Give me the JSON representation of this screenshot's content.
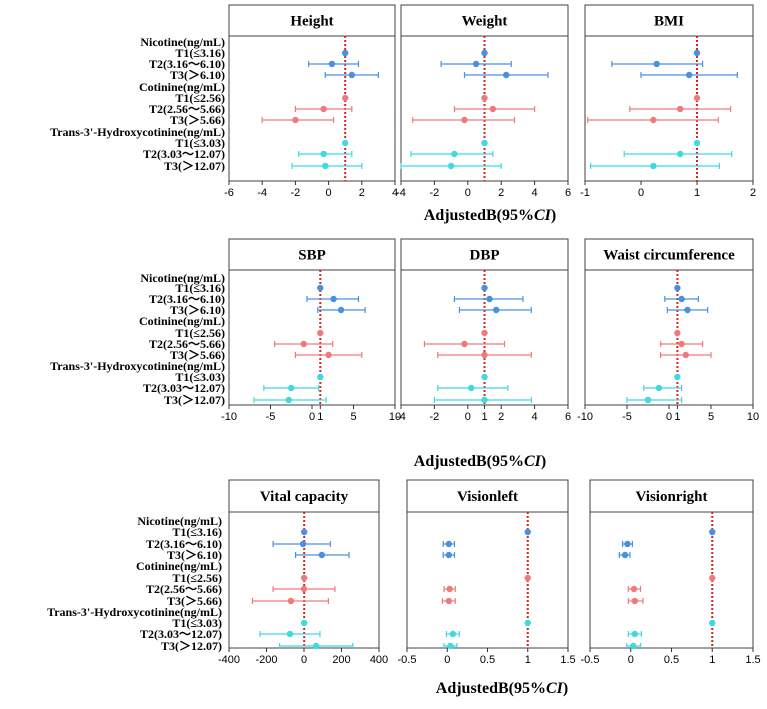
{
  "colors": {
    "nicotine": "#4a90e2",
    "cotinine": "#ee7b7b",
    "hydroxy": "#3fd9df",
    "refline": "#e0201a",
    "panel_border": "#404040"
  },
  "categories": [
    "Nicotine(ng/mL)",
    "T1(≤3.16)",
    "T2(3.16～6.10)",
    "T3(＞6.10)",
    "Cotinine(ng/mL)",
    "T1(≤2.56)",
    "T2(2.56～5.66)",
    "T3(＞5.66)",
    "Trans-3'-Hydroxycotinine(ng/mL)",
    "T1(≤3.03)",
    "T2(3.03～12.07)",
    "T3(＞12.07)"
  ],
  "xlabels": {
    "row1_prefix": "AdjustedB(95%",
    "row1_ci": "CI",
    "row1_suffix": ")",
    "row2_prefix": "AdjustedB(95%",
    "row2_ci": "CI",
    "row2_suffix": ")",
    "row3_prefix": "AdjustedB(95%",
    "row3_ci": "CI",
    "row3_suffix": ")"
  },
  "chart_data": [
    {
      "type": "forest",
      "title": "Height",
      "xlim": [
        -6,
        4
      ],
      "ticks": [
        "-6",
        "-4",
        "-2",
        "0",
        "2",
        "4"
      ],
      "tick_values": [
        -6,
        -4,
        -2,
        0,
        2,
        4
      ],
      "refline": 1,
      "points": [
        {
          "row": 1,
          "est": 1,
          "lo": 1,
          "hi": 1
        },
        {
          "row": 2,
          "est": 0.2,
          "lo": -1.2,
          "hi": 1.8
        },
        {
          "row": 3,
          "est": 1.4,
          "lo": -0.2,
          "hi": 3.0
        },
        {
          "row": 5,
          "est": 1,
          "lo": 1,
          "hi": 1
        },
        {
          "row": 6,
          "est": -0.3,
          "lo": -2.0,
          "hi": 1.4
        },
        {
          "row": 7,
          "est": -2.0,
          "lo": -4.0,
          "hi": 0.3
        },
        {
          "row": 9,
          "est": 1,
          "lo": 1,
          "hi": 1
        },
        {
          "row": 10,
          "est": -0.3,
          "lo": -1.8,
          "hi": 1.4
        },
        {
          "row": 11,
          "est": -0.2,
          "lo": -2.2,
          "hi": 2.0
        }
      ]
    },
    {
      "type": "forest",
      "title": "Weight",
      "xlim": [
        -4,
        6
      ],
      "ticks": [
        "-4",
        "-2",
        "0",
        "2",
        "4",
        "6"
      ],
      "tick_values": [
        -4,
        -2,
        0,
        2,
        4,
        6
      ],
      "refline": 1,
      "points": [
        {
          "row": 1,
          "est": 1,
          "lo": 1,
          "hi": 1
        },
        {
          "row": 2,
          "est": 0.5,
          "lo": -1.6,
          "hi": 2.6
        },
        {
          "row": 3,
          "est": 2.3,
          "lo": -0.2,
          "hi": 4.8
        },
        {
          "row": 5,
          "est": 1,
          "lo": 1,
          "hi": 1
        },
        {
          "row": 6,
          "est": 1.5,
          "lo": -0.8,
          "hi": 4.0
        },
        {
          "row": 7,
          "est": -0.2,
          "lo": -3.3,
          "hi": 2.8
        },
        {
          "row": 9,
          "est": 1,
          "lo": 1,
          "hi": 1
        },
        {
          "row": 10,
          "est": -0.8,
          "lo": -3.4,
          "hi": 1.5
        },
        {
          "row": 11,
          "est": -1.0,
          "lo": -4.0,
          "hi": 2.0
        }
      ]
    },
    {
      "type": "forest",
      "title": "BMI",
      "xlim": [
        -1,
        2
      ],
      "ticks": [
        "-1",
        "0",
        "1",
        "2"
      ],
      "tick_values": [
        -1,
        0,
        1,
        2
      ],
      "refline": 1,
      "points": [
        {
          "row": 1,
          "est": 1,
          "lo": 1,
          "hi": 1
        },
        {
          "row": 2,
          "est": 0.28,
          "lo": -0.52,
          "hi": 1.1
        },
        {
          "row": 3,
          "est": 0.86,
          "lo": 0.0,
          "hi": 1.72
        },
        {
          "row": 5,
          "est": 1,
          "lo": 1,
          "hi": 1
        },
        {
          "row": 6,
          "est": 0.7,
          "lo": -0.2,
          "hi": 1.6
        },
        {
          "row": 7,
          "est": 0.22,
          "lo": -0.95,
          "hi": 1.38
        },
        {
          "row": 9,
          "est": 1,
          "lo": 1,
          "hi": 1
        },
        {
          "row": 10,
          "est": 0.7,
          "lo": -0.3,
          "hi": 1.62
        },
        {
          "row": 11,
          "est": 0.22,
          "lo": -0.9,
          "hi": 1.4
        }
      ]
    },
    {
      "type": "forest",
      "title": "SBP",
      "xlim": [
        -10,
        10
      ],
      "ticks": [
        "-10",
        "-5",
        "0",
        "1",
        "5",
        "10"
      ],
      "tick_values": [
        -10,
        -5,
        0,
        1,
        5,
        10
      ],
      "refline": 1,
      "points": [
        {
          "row": 1,
          "est": 1,
          "lo": 1,
          "hi": 1
        },
        {
          "row": 2,
          "est": 2.6,
          "lo": -0.6,
          "hi": 5.6
        },
        {
          "row": 3,
          "est": 3.5,
          "lo": 0.7,
          "hi": 6.4
        },
        {
          "row": 5,
          "est": 1,
          "lo": 1,
          "hi": 1
        },
        {
          "row": 6,
          "est": -1.0,
          "lo": -4.5,
          "hi": 2.5
        },
        {
          "row": 7,
          "est": 2.0,
          "lo": -2.0,
          "hi": 6.0
        },
        {
          "row": 9,
          "est": 1,
          "lo": 1,
          "hi": 1
        },
        {
          "row": 10,
          "est": -2.5,
          "lo": -5.8,
          "hi": 0.8
        },
        {
          "row": 11,
          "est": -2.8,
          "lo": -7.0,
          "hi": 1.7
        }
      ]
    },
    {
      "type": "forest",
      "title": "DBP",
      "xlim": [
        -4,
        6
      ],
      "ticks": [
        "-4",
        "-2",
        "0",
        "1",
        "2",
        "4",
        "6"
      ],
      "tick_values": [
        -4,
        -2,
        0,
        1,
        2,
        4,
        6
      ],
      "refline": 1,
      "points": [
        {
          "row": 1,
          "est": 1,
          "lo": 1,
          "hi": 1
        },
        {
          "row": 2,
          "est": 1.3,
          "lo": -0.8,
          "hi": 3.3
        },
        {
          "row": 3,
          "est": 1.7,
          "lo": -0.5,
          "hi": 3.8
        },
        {
          "row": 5,
          "est": 1,
          "lo": 1,
          "hi": 1
        },
        {
          "row": 6,
          "est": -0.2,
          "lo": -2.6,
          "hi": 2.2
        },
        {
          "row": 7,
          "est": 1.0,
          "lo": -1.8,
          "hi": 3.8
        },
        {
          "row": 9,
          "est": 1,
          "lo": 1,
          "hi": 1
        },
        {
          "row": 10,
          "est": 0.2,
          "lo": -1.8,
          "hi": 2.4
        },
        {
          "row": 11,
          "est": 1.0,
          "lo": -2.0,
          "hi": 3.8
        }
      ]
    },
    {
      "type": "forest",
      "title": "Waist circumference",
      "xlim": [
        -10,
        10
      ],
      "ticks": [
        "-10",
        "-5",
        "0",
        "1",
        "5",
        "10"
      ],
      "tick_values": [
        -10,
        -5,
        0,
        1,
        5,
        10
      ],
      "refline": 1,
      "points": [
        {
          "row": 1,
          "est": 1,
          "lo": 1,
          "hi": 1
        },
        {
          "row": 2,
          "est": 1.5,
          "lo": -0.5,
          "hi": 3.5
        },
        {
          "row": 3,
          "est": 2.2,
          "lo": -0.2,
          "hi": 4.6
        },
        {
          "row": 5,
          "est": 1,
          "lo": 1,
          "hi": 1
        },
        {
          "row": 6,
          "est": 1.5,
          "lo": -1.0,
          "hi": 4.0
        },
        {
          "row": 7,
          "est": 2.0,
          "lo": -1.0,
          "hi": 5.0
        },
        {
          "row": 9,
          "est": 1,
          "lo": 1,
          "hi": 1
        },
        {
          "row": 10,
          "est": -1.2,
          "lo": -3.0,
          "hi": 1.5
        },
        {
          "row": 11,
          "est": -2.5,
          "lo": -5.0,
          "hi": 1.5
        }
      ]
    },
    {
      "type": "forest",
      "title": "Vital capacity",
      "xlim": [
        -400,
        400
      ],
      "ticks": [
        "-400",
        "-200",
        "0",
        "200",
        "400"
      ],
      "tick_values": [
        -400,
        -200,
        0,
        200,
        400
      ],
      "refline": 1,
      "points": [
        {
          "row": 1,
          "est": 1,
          "lo": 1,
          "hi": 1
        },
        {
          "row": 2,
          "est": -5,
          "lo": -165,
          "hi": 140
        },
        {
          "row": 3,
          "est": 95,
          "lo": -45,
          "hi": 240
        },
        {
          "row": 5,
          "est": 1,
          "lo": 1,
          "hi": 1
        },
        {
          "row": 6,
          "est": 0,
          "lo": -165,
          "hi": 165
        },
        {
          "row": 7,
          "est": -70,
          "lo": -275,
          "hi": 130
        },
        {
          "row": 9,
          "est": 1,
          "lo": 1,
          "hi": 1
        },
        {
          "row": 10,
          "est": -75,
          "lo": -235,
          "hi": 85
        },
        {
          "row": 11,
          "est": 65,
          "lo": -130,
          "hi": 260
        }
      ]
    },
    {
      "type": "forest",
      "title": "Visionleft",
      "xlim": [
        -0.5,
        1.5
      ],
      "ticks": [
        "-0.5",
        "0",
        "0.5",
        "1",
        "1.5"
      ],
      "tick_values": [
        -0.5,
        0,
        0.5,
        1,
        1.5
      ],
      "refline": 1,
      "points": [
        {
          "row": 1,
          "est": 1,
          "lo": 1,
          "hi": 1
        },
        {
          "row": 2,
          "est": 0.02,
          "lo": -0.05,
          "hi": 0.09
        },
        {
          "row": 3,
          "est": 0.02,
          "lo": -0.05,
          "hi": 0.09
        },
        {
          "row": 5,
          "est": 1,
          "lo": 1,
          "hi": 1
        },
        {
          "row": 6,
          "est": 0.03,
          "lo": -0.04,
          "hi": 0.1
        },
        {
          "row": 7,
          "est": 0.02,
          "lo": -0.06,
          "hi": 0.1
        },
        {
          "row": 9,
          "est": 1,
          "lo": 1,
          "hi": 1
        },
        {
          "row": 10,
          "est": 0.07,
          "lo": -0.01,
          "hi": 0.15
        },
        {
          "row": 11,
          "est": 0.04,
          "lo": -0.04,
          "hi": 0.12
        }
      ]
    },
    {
      "type": "forest",
      "title": "Visionright",
      "xlim": [
        -0.5,
        1.5
      ],
      "ticks": [
        "-0.5",
        "0",
        "0.5",
        "1",
        "1.5"
      ],
      "tick_values": [
        -0.5,
        0,
        0.5,
        1,
        1.5
      ],
      "refline": 1,
      "points": [
        {
          "row": 1,
          "est": 1,
          "lo": 1,
          "hi": 1
        },
        {
          "row": 2,
          "est": -0.04,
          "lo": -0.1,
          "hi": 0.02
        },
        {
          "row": 3,
          "est": -0.07,
          "lo": -0.14,
          "hi": -0.01
        },
        {
          "row": 5,
          "est": 1,
          "lo": 1,
          "hi": 1
        },
        {
          "row": 6,
          "est": 0.04,
          "lo": -0.03,
          "hi": 0.12
        },
        {
          "row": 7,
          "est": 0.05,
          "lo": -0.03,
          "hi": 0.15
        },
        {
          "row": 9,
          "est": 1,
          "lo": 1,
          "hi": 1
        },
        {
          "row": 10,
          "est": 0.05,
          "lo": -0.03,
          "hi": 0.13
        },
        {
          "row": 11,
          "est": 0.03,
          "lo": -0.05,
          "hi": 0.12
        }
      ]
    }
  ]
}
